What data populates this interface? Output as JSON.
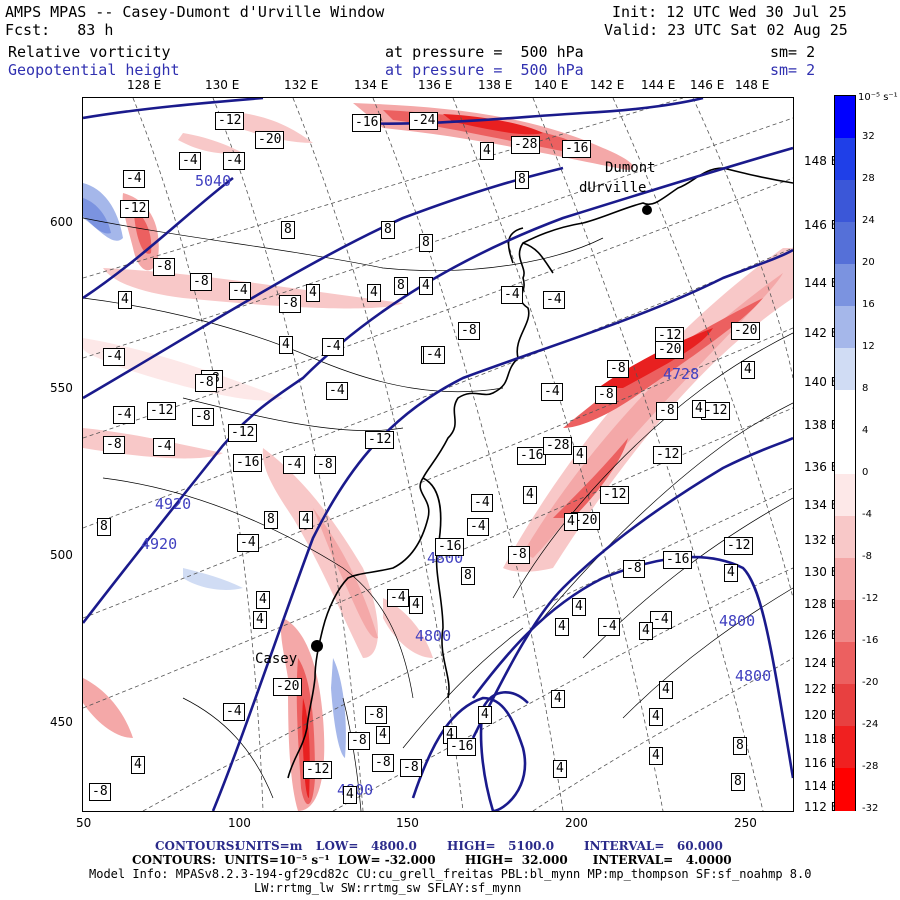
{
  "header": {
    "model_title": "AMPS MPAS -- Casey-Dumont d'Urville Window",
    "init": "Init: 12 UTC Wed 30 Jul 25",
    "fcst": "Fcst:   83 h",
    "valid": "Valid: 23 UTC Sat 02 Aug 25",
    "field1": "Relative vorticity",
    "field1_level": "at pressure =  500 hPa",
    "field1_sm": "sm= 2",
    "field2": "Geopotential height",
    "field2_level": "at pressure =  500 hPa",
    "field2_sm": "sm= 2"
  },
  "colors": {
    "height_contour": "#1a1a8c",
    "height_label": "#4040c0",
    "coast": "#000000",
    "grid": "#555555"
  },
  "axes": {
    "x_ticks": [
      "50",
      "100",
      "150",
      "200",
      "250"
    ],
    "y_ticks": [
      "600",
      "550",
      "500",
      "450"
    ],
    "lon_top": [
      "128 E",
      "130 E",
      "132 E",
      "134 E",
      "136 E",
      "138 E",
      "140 E",
      "142 E",
      "144 E",
      "146 E",
      "148 E"
    ],
    "lat_right": [
      "148 E",
      "146 E",
      "144 E",
      "142 E",
      "140 E",
      "138 E",
      "136 E",
      "134 E",
      "132 E",
      "130 E",
      "128 E",
      "126 E",
      "124 E",
      "122 E",
      "120 E",
      "118 E",
      "116 E",
      "114 E",
      "112 E"
    ]
  },
  "colorbar": {
    "unit": "10⁻⁵ s⁻¹",
    "labels": [
      "32",
      "28",
      "24",
      "20",
      "16",
      "12",
      "8",
      "4",
      "0",
      "-4",
      "-8",
      "-12",
      "-16",
      "-20",
      "-24",
      "-28",
      "-32"
    ],
    "colors": [
      "#0000ff",
      "#1f3fe8",
      "#3b57d8",
      "#5570d8",
      "#7b93e0",
      "#a5b7ea",
      "#d0dcf4",
      "#ffffff",
      "#ffffff",
      "#fde8e8",
      "#f8c8c8",
      "#f4a8a8",
      "#f08888",
      "#ec6060",
      "#e84040",
      "#f02020",
      "#ff0000"
    ]
  },
  "places": {
    "dumont": "Dumont",
    "durville": "dUrville",
    "casey": "Casey"
  },
  "height_labels": [
    "5040",
    "4920",
    "4920",
    "4800",
    "4800",
    "4800",
    "4800",
    "4800",
    "4728"
  ],
  "vort_labels": [
    {
      "v": "-12"
    },
    {
      "v": "-20"
    },
    {
      "v": "-16"
    },
    {
      "v": "-24"
    },
    {
      "v": "-28"
    },
    {
      "v": "-16"
    },
    {
      "v": "-4"
    },
    {
      "v": "-4"
    },
    {
      "v": "4"
    },
    {
      "v": "-4"
    },
    {
      "v": "8"
    },
    {
      "v": "-12"
    },
    {
      "v": "8"
    },
    {
      "v": "8"
    },
    {
      "v": "8"
    },
    {
      "v": "-8"
    },
    {
      "v": "-8"
    },
    {
      "v": "-4"
    },
    {
      "v": "-8"
    },
    {
      "v": "4"
    },
    {
      "v": "4"
    },
    {
      "v": "8"
    },
    {
      "v": "4"
    },
    {
      "v": "4"
    },
    {
      "v": "-4"
    },
    {
      "v": "-4"
    },
    {
      "v": "-8"
    },
    {
      "v": "4"
    },
    {
      "v": "-4"
    },
    {
      "v": "-8"
    },
    {
      "v": "-4"
    },
    {
      "v": "-8"
    },
    {
      "v": "-12"
    },
    {
      "v": "-20"
    },
    {
      "v": "-20"
    },
    {
      "v": "-4"
    },
    {
      "v": "-4"
    },
    {
      "v": "-4"
    },
    {
      "v": "-8"
    },
    {
      "v": "-4"
    },
    {
      "v": "-12"
    },
    {
      "v": "-8"
    },
    {
      "v": "-12"
    },
    {
      "v": "-8"
    },
    {
      "v": "-4"
    },
    {
      "v": "-16"
    },
    {
      "v": "-4"
    },
    {
      "v": "-8"
    },
    {
      "v": "-12"
    },
    {
      "v": "-16"
    },
    {
      "v": "-28"
    },
    {
      "v": "-8"
    },
    {
      "v": "-8"
    },
    {
      "v": "-8"
    },
    {
      "v": "-12"
    },
    {
      "v": "4"
    },
    {
      "v": "4"
    },
    {
      "v": "4"
    },
    {
      "v": "-12"
    },
    {
      "v": "-12"
    },
    {
      "v": "-4"
    },
    {
      "v": "-4"
    },
    {
      "v": "-20"
    },
    {
      "v": "8"
    },
    {
      "v": "-8"
    },
    {
      "v": "4"
    },
    {
      "v": "8"
    },
    {
      "v": "4"
    },
    {
      "v": "-16"
    },
    {
      "v": "-4"
    },
    {
      "v": "-4"
    },
    {
      "v": "4"
    },
    {
      "v": "4"
    },
    {
      "v": "4"
    },
    {
      "v": "4"
    },
    {
      "v": "-8"
    },
    {
      "v": "-16"
    },
    {
      "v": "-12"
    },
    {
      "v": "-4"
    },
    {
      "v": "8"
    },
    {
      "v": "4"
    },
    {
      "v": "-4"
    },
    {
      "v": "4"
    },
    {
      "v": "4"
    },
    {
      "v": "4"
    },
    {
      "v": "4"
    },
    {
      "v": "-20"
    },
    {
      "v": "-8"
    },
    {
      "v": "4"
    },
    {
      "v": "-8"
    },
    {
      "v": "4"
    },
    {
      "v": "-12"
    },
    {
      "v": "-8"
    },
    {
      "v": "4"
    },
    {
      "v": "4"
    },
    {
      "v": "-4"
    },
    {
      "v": "4"
    },
    {
      "v": "8"
    },
    {
      "v": "4"
    },
    {
      "v": "-8"
    },
    {
      "v": "4"
    },
    {
      "v": "8"
    },
    {
      "v": "-16"
    },
    {
      "v": "4"
    },
    {
      "v": "4"
    },
    {
      "v": "-8"
    }
  ],
  "footer": {
    "contours1_label": "CONTOURS:",
    "contours1_units": "UNITS=m",
    "contours1_low": "LOW=   4800.0",
    "contours1_high": "HIGH=   5100.0",
    "contours1_interval": "INTERVAL=   60.000",
    "contours2": "CONTOURS:  UNITS=10⁻⁵ s⁻¹  LOW= -32.000       HIGH=  32.000      INTERVAL=   4.0000",
    "model_info": "Model Info: MPASv8.2.3-194-gf29cd82c CU:cu_grell_freitas PBL:bl_mynn MP:mp_thompson SF:sf_noahmp 8.0",
    "model_info2": "LW:rrtmg_lw SW:rrtmg_sw SFLAY:sf_mynn"
  }
}
